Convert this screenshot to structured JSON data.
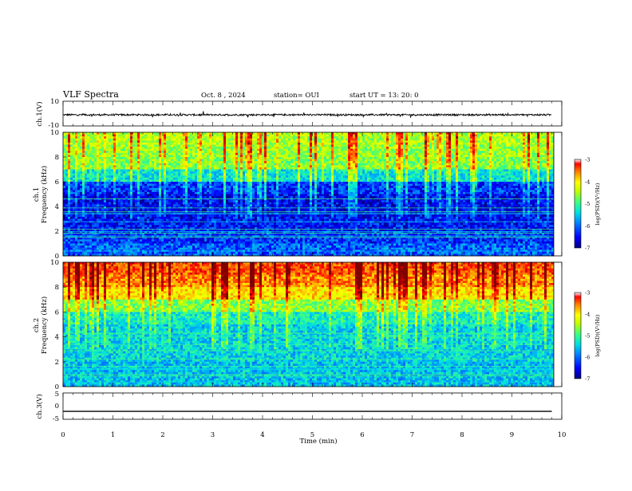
{
  "header": {
    "title": "VLF Spectra",
    "date": "Oct. 8 , 2024",
    "station": "station= OUI",
    "start": "start  UT  =   13: 20: 0"
  },
  "colors": {
    "scale": [
      "#000080",
      "#0000ff",
      "#0080ff",
      "#00e0e0",
      "#40ff80",
      "#c0ff00",
      "#ffff00",
      "#ff8000",
      "#ff0000",
      "#800000"
    ]
  },
  "chart_data": [
    {
      "type": "line",
      "ylabel": "ch.1(V)",
      "ylim": [
        -10,
        10
      ],
      "yticks": [
        "10",
        "-10"
      ],
      "x": [
        0,
        1,
        2,
        3,
        4,
        5,
        6,
        7,
        8,
        9,
        9.8
      ],
      "y": [
        -1,
        -1,
        -1,
        -1,
        -1,
        -1,
        -1,
        -1,
        -1,
        -1,
        -1
      ]
    },
    {
      "type": "heatmap",
      "ylabel": "ch.1\nFrequency (kHz)",
      "ylim": [
        0,
        10
      ],
      "yticks": [
        "0",
        "2",
        "4",
        "6",
        "8",
        "10"
      ],
      "colorbar": {
        "label": "log(PSD)(V²/Hz)",
        "range": [
          -7,
          -3
        ],
        "ticks": [
          "-3",
          "-4",
          "-5",
          "-6",
          "-7"
        ]
      },
      "freq_bands_khz": [
        0,
        1,
        2,
        3,
        4,
        5,
        6,
        7,
        8,
        9,
        10
      ],
      "band_levels": [
        -6.2,
        -6.4,
        -6.5,
        -6.6,
        -6.6,
        -6.4,
        -5.6,
        -5.0,
        -4.9,
        -4.8
      ]
    },
    {
      "type": "heatmap",
      "ylabel": "ch.2\nFrequency (kHz)",
      "ylim": [
        0,
        10
      ],
      "yticks": [
        "0",
        "2",
        "4",
        "6",
        "8",
        "10"
      ],
      "colorbar": {
        "label": "log(PSD)(V²/Hz)",
        "range": [
          -7,
          -3
        ],
        "ticks": [
          "-3",
          "-4",
          "-5",
          "-6",
          "-7"
        ]
      },
      "freq_bands_khz": [
        0,
        1,
        2,
        3,
        4,
        5,
        6,
        7,
        8,
        9,
        10
      ],
      "band_levels": [
        -5.8,
        -5.8,
        -5.7,
        -5.7,
        -5.7,
        -5.5,
        -5.0,
        -4.3,
        -3.9,
        -3.7
      ]
    },
    {
      "type": "line",
      "ylabel": "ch.3(V)",
      "ylim": [
        -5,
        5
      ],
      "yticks": [
        "5",
        "0",
        "-5"
      ],
      "x": [
        0,
        9.8
      ],
      "y": [
        -2,
        -2
      ]
    }
  ],
  "xaxis": {
    "label": "Time (min)",
    "range": [
      0,
      10
    ],
    "ticks": [
      "0",
      "1",
      "2",
      "3",
      "4",
      "5",
      "6",
      "7",
      "8",
      "9",
      "10"
    ]
  }
}
